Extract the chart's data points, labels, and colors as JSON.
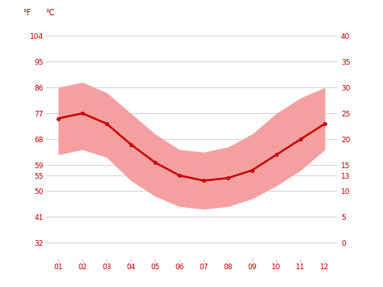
{
  "months": [
    1,
    2,
    3,
    4,
    5,
    6,
    7,
    8,
    9,
    10,
    11,
    12
  ],
  "month_labels": [
    "01",
    "02",
    "03",
    "04",
    "05",
    "06",
    "07",
    "08",
    "09",
    "10",
    "11",
    "12"
  ],
  "avg_temp": [
    24.0,
    25.0,
    23.0,
    19.0,
    15.5,
    13.0,
    12.0,
    12.5,
    14.0,
    17.0,
    20.0,
    23.0
  ],
  "max_temp": [
    30.0,
    31.0,
    29.0,
    25.0,
    21.0,
    18.0,
    17.5,
    18.5,
    21.0,
    25.0,
    28.0,
    30.0
  ],
  "min_temp": [
    17.0,
    18.0,
    16.5,
    12.0,
    9.0,
    7.0,
    6.5,
    7.0,
    8.5,
    11.0,
    14.0,
    18.0
  ],
  "line_color": "#cc0000",
  "fill_color": "#f5a0a0",
  "background_color": "#ffffff",
  "grid_color": "#cccccc",
  "c_ticks": [
    0,
    5,
    10,
    13,
    15,
    20,
    25,
    30,
    35,
    40
  ],
  "ylim_c": [
    -3,
    43
  ],
  "text_color": "#cc0000",
  "ylabel_left": "°F",
  "ylabel_right": "°C",
  "tick_fontsize": 6.5,
  "label_fontsize": 7.0
}
